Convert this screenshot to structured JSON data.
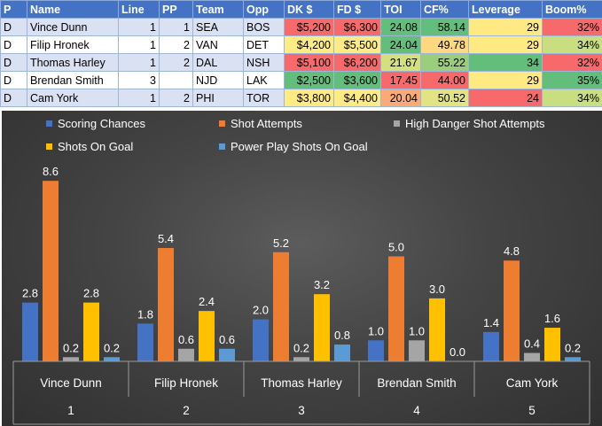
{
  "table": {
    "columns": [
      "P",
      "Name",
      "Line",
      "PP",
      "Team",
      "Opp",
      "DK $",
      "FD $",
      "TOI",
      "CF%",
      "Leverage",
      "Boom%"
    ],
    "rows": [
      {
        "p": "D",
        "name": "Vince Dunn",
        "line": "1",
        "pp": "1",
        "team": "SEA",
        "opp": "BOS",
        "dk": "$5,200",
        "fd": "$6,300",
        "toi": "24.08",
        "cf": "58.14",
        "leverage": "29",
        "boom": "32%"
      },
      {
        "p": "D",
        "name": "Filip Hronek",
        "line": "1",
        "pp": "2",
        "team": "VAN",
        "opp": "DET",
        "dk": "$4,200",
        "fd": "$5,500",
        "toi": "24.04",
        "cf": "49.78",
        "leverage": "29",
        "boom": "34%"
      },
      {
        "p": "D",
        "name": "Thomas Harley",
        "line": "1",
        "pp": "2",
        "team": "DAL",
        "opp": "NSH",
        "dk": "$5,100",
        "fd": "$6,200",
        "toi": "21.67",
        "cf": "55.22",
        "leverage": "34",
        "boom": "32%"
      },
      {
        "p": "D",
        "name": "Brendan Smith",
        "line": "3",
        "pp": "",
        "team": "NJD",
        "opp": "LAK",
        "dk": "$2,500",
        "fd": "$3,600",
        "toi": "17.45",
        "cf": "44.00",
        "leverage": "29",
        "boom": "35%"
      },
      {
        "p": "D",
        "name": "Cam York",
        "line": "1",
        "pp": "2",
        "team": "PHI",
        "opp": "TOR",
        "dk": "$3,800",
        "fd": "$4,400",
        "toi": "20.04",
        "cf": "50.52",
        "leverage": "24",
        "boom": "34%"
      }
    ],
    "cell_colors": [
      {
        "dk": "#f8696b",
        "fd": "#f8696b",
        "toi": "#63be7b",
        "cf": "#63be7b",
        "leverage": "#fee983",
        "boom": "#f8696b"
      },
      {
        "dk": "#ffeb84",
        "fd": "#ffeb84",
        "toi": "#63be7b",
        "cf": "#fed880",
        "leverage": "#fee983",
        "boom": "#c9dd81"
      },
      {
        "dk": "#f8696b",
        "fd": "#f8696b",
        "toi": "#d4e07f",
        "cf": "#9bcd7d",
        "leverage": "#63be7b",
        "boom": "#f8696b"
      },
      {
        "dk": "#63be7b",
        "fd": "#63be7b",
        "toi": "#f8696b",
        "cf": "#f8696b",
        "leverage": "#fee983",
        "boom": "#63be7b"
      },
      {
        "dk": "#ffeb84",
        "fd": "#ffeb84",
        "toi": "#fbaa77",
        "cf": "#e2e383",
        "leverage": "#f8696b",
        "boom": "#c9dd81"
      }
    ]
  },
  "chart_data": {
    "type": "bar",
    "title": "",
    "xlabel": "",
    "ylabel": "",
    "grid": false,
    "legend_position": "top",
    "categories": [
      "Vince Dunn",
      "Filip Hronek",
      "Thomas Harley",
      "Brendan Smith",
      "Cam York"
    ],
    "category_numbers": [
      "1",
      "2",
      "3",
      "4",
      "5"
    ],
    "ylim": [
      0,
      9
    ],
    "series": [
      {
        "name": "Scoring Chances",
        "color": "#4472c4",
        "values": [
          2.8,
          1.8,
          2.0,
          1.0,
          1.4
        ],
        "labels": [
          "2.8",
          "1.8",
          "2.0",
          "1.0",
          "1.4"
        ]
      },
      {
        "name": "Shot Attempts",
        "color": "#ed7d31",
        "values": [
          8.6,
          5.4,
          5.2,
          5.0,
          4.8
        ],
        "labels": [
          "8.6",
          "5.4",
          "5.2",
          "5.0",
          "4.8"
        ]
      },
      {
        "name": "High Danger Shot Attempts",
        "color": "#a5a5a5",
        "values": [
          0.2,
          0.6,
          0.2,
          1.0,
          0.4
        ],
        "labels": [
          "0.2",
          "0.6",
          "0.2",
          "1.0",
          "0.4"
        ]
      },
      {
        "name": "Shots On Goal",
        "color": "#ffc000",
        "values": [
          2.8,
          2.4,
          3.2,
          3.0,
          1.6
        ],
        "labels": [
          "2.8",
          "2.4",
          "3.2",
          "3.0",
          "1.6"
        ]
      },
      {
        "name": "Power Play Shots On Goal",
        "color": "#5b9bd5",
        "values": [
          0.2,
          0.6,
          0.8,
          0.0,
          0.2
        ],
        "labels": [
          "0.2",
          "0.6",
          "0.8",
          "0.0",
          "0.2"
        ]
      }
    ]
  }
}
